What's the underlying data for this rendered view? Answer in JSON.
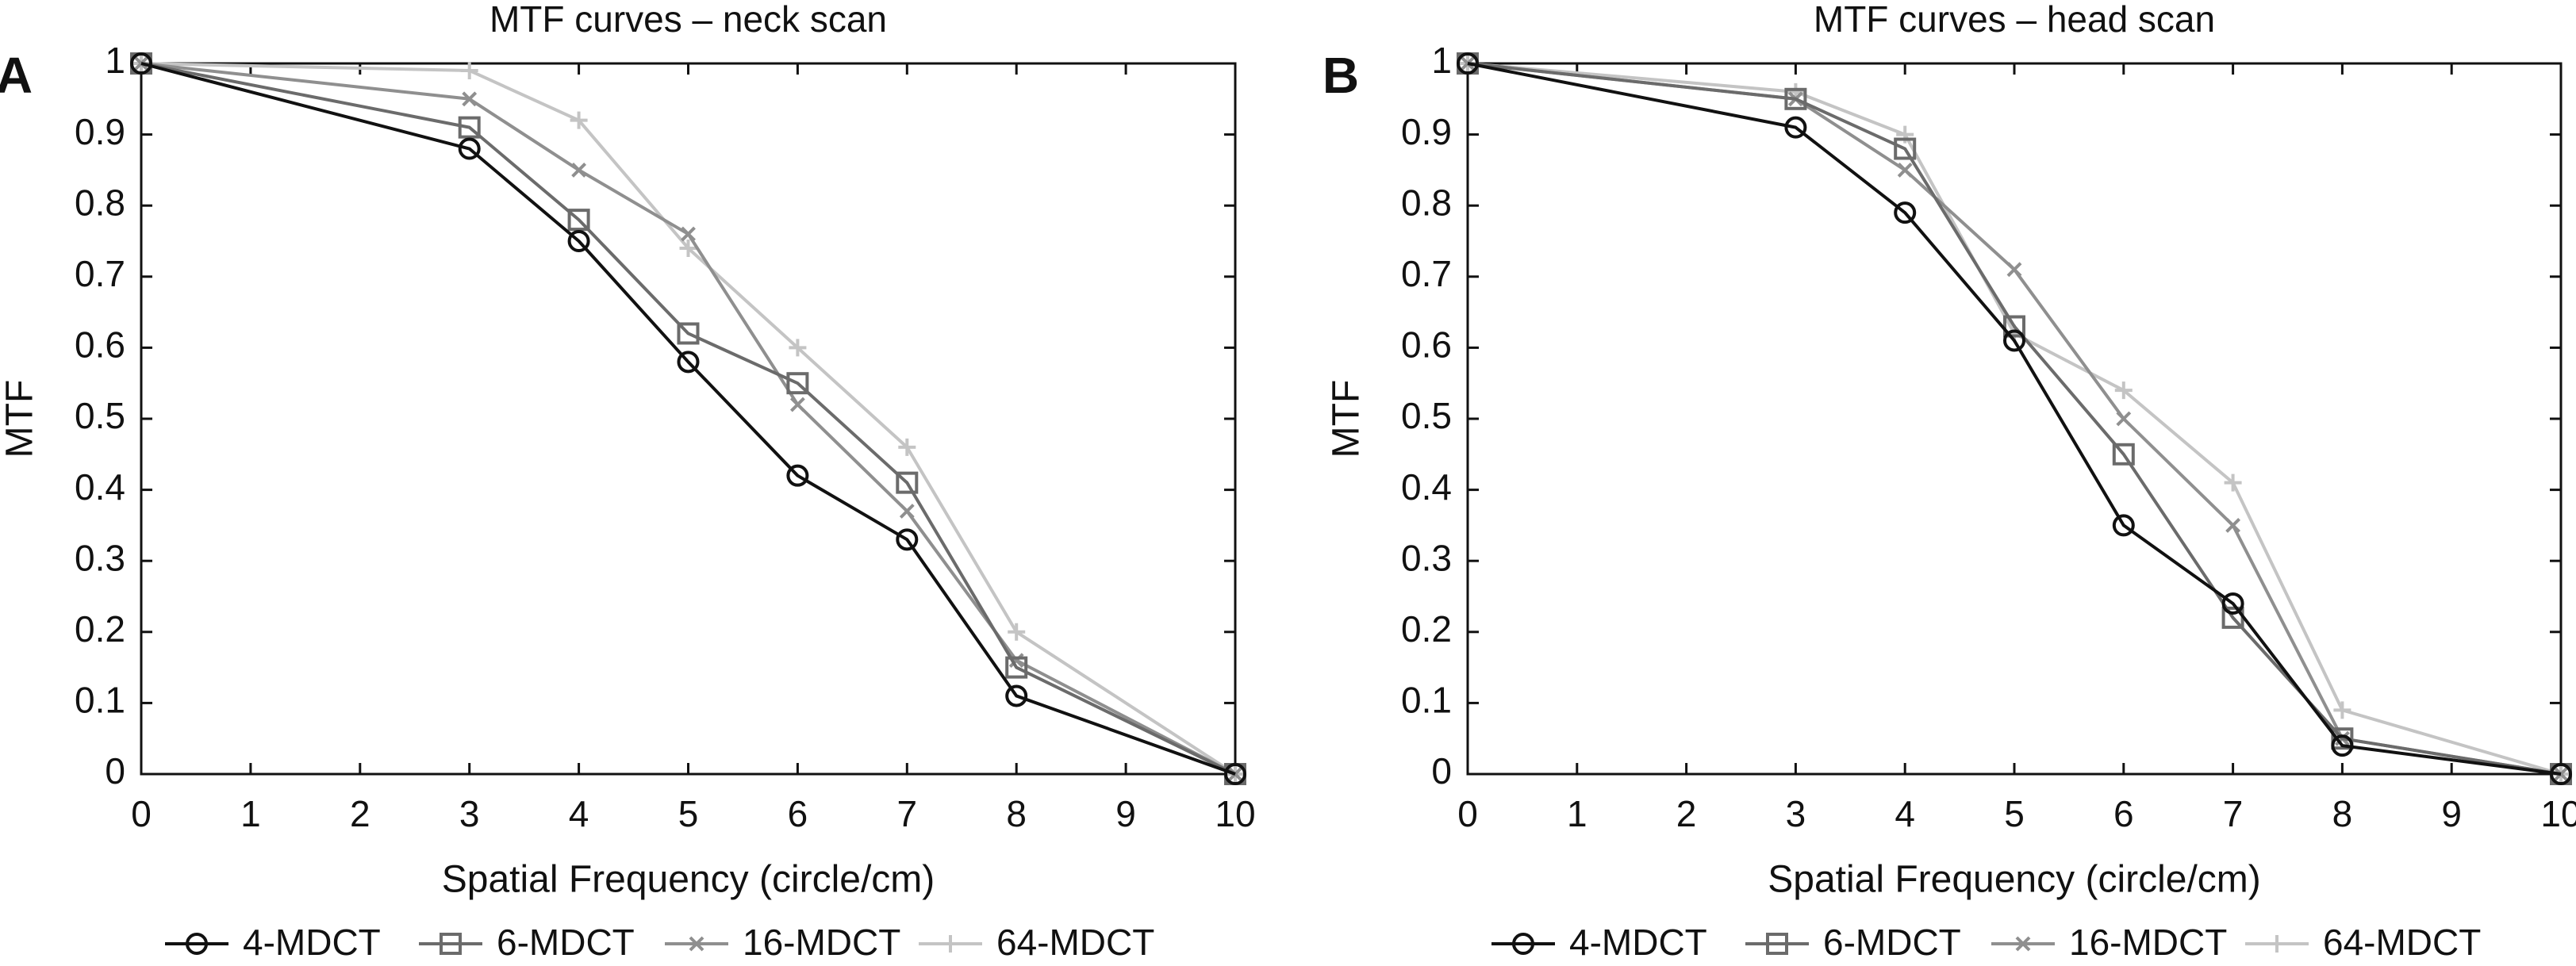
{
  "colors": {
    "4-MDCT": "#111111",
    "6-MDCT": "#6b6b6b",
    "16-MDCT": "#8f8f8f",
    "64-MDCT": "#c4c4c4",
    "axis": "#111111"
  },
  "chart_data": [
    {
      "panel_label": "A",
      "type": "line",
      "title": "MTF curves – neck scan",
      "xlabel": "Spatial Frequency (circle/cm)",
      "ylabel": "MTF",
      "xlim": [
        0,
        10
      ],
      "ylim": [
        0,
        1
      ],
      "xticks": [
        "0",
        "1",
        "2",
        "3",
        "4",
        "5",
        "6",
        "7",
        "8",
        "9",
        "10"
      ],
      "yticks": [
        "0",
        "0.1",
        "0.2",
        "0.3",
        "0.4",
        "0.5",
        "0.6",
        "0.7",
        "0.8",
        "0.9",
        "1"
      ],
      "grid": false,
      "legend_position": "bottom",
      "x": [
        0,
        3,
        4,
        5,
        6,
        7,
        8,
        10
      ],
      "series": [
        {
          "name": "4-MDCT",
          "marker": "circle",
          "values": [
            1.0,
            0.88,
            0.75,
            0.58,
            0.42,
            0.33,
            0.11,
            0.0
          ]
        },
        {
          "name": "6-MDCT",
          "marker": "square",
          "values": [
            1.0,
            0.91,
            0.78,
            0.62,
            0.55,
            0.41,
            0.15,
            0.0
          ]
        },
        {
          "name": "16-MDCT",
          "marker": "x",
          "values": [
            1.0,
            0.95,
            0.85,
            0.76,
            0.52,
            0.37,
            0.16,
            0.0
          ]
        },
        {
          "name": "64-MDCT",
          "marker": "plus",
          "values": [
            1.0,
            0.99,
            0.92,
            0.74,
            0.6,
            0.46,
            0.2,
            0.0
          ]
        }
      ]
    },
    {
      "panel_label": "B",
      "type": "line",
      "title": "MTF curves – head scan",
      "xlabel": "Spatial Frequency (circle/cm)",
      "ylabel": "MTF",
      "xlim": [
        0,
        10
      ],
      "ylim": [
        0,
        1
      ],
      "xticks": [
        "0",
        "1",
        "2",
        "3",
        "4",
        "5",
        "6",
        "7",
        "8",
        "9",
        "10"
      ],
      "yticks": [
        "0",
        "0.1",
        "0.2",
        "0.3",
        "0.4",
        "0.5",
        "0.6",
        "0.7",
        "0.8",
        "0.9",
        "1"
      ],
      "grid": false,
      "legend_position": "bottom",
      "x": [
        0,
        3,
        4,
        5,
        6,
        7,
        8,
        10
      ],
      "series": [
        {
          "name": "4-MDCT",
          "marker": "circle",
          "values": [
            1.0,
            0.91,
            0.79,
            0.61,
            0.35,
            0.24,
            0.04,
            0.0
          ]
        },
        {
          "name": "6-MDCT",
          "marker": "square",
          "values": [
            1.0,
            0.95,
            0.88,
            0.63,
            0.45,
            0.22,
            0.05,
            0.0
          ]
        },
        {
          "name": "16-MDCT",
          "marker": "x",
          "values": [
            1.0,
            0.95,
            0.85,
            0.71,
            0.5,
            0.35,
            0.05,
            0.0
          ]
        },
        {
          "name": "64-MDCT",
          "marker": "plus",
          "values": [
            1.0,
            0.96,
            0.9,
            0.62,
            0.54,
            0.41,
            0.09,
            0.0
          ]
        }
      ]
    }
  ]
}
